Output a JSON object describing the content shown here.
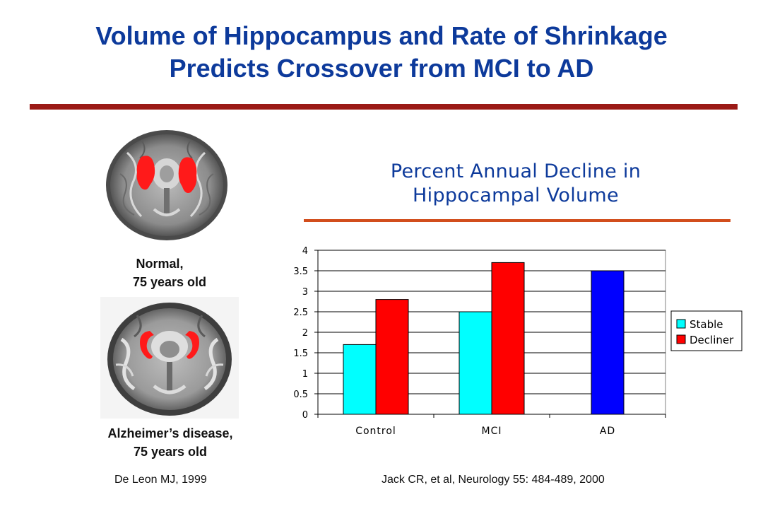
{
  "slide": {
    "title_line1": "Volume of Hippocampus and Rate of Shrinkage",
    "title_line2": "Predicts Crossover from MCI to AD"
  },
  "scans": {
    "normal_label_line1": "Normal,",
    "normal_label_line2": "75 years old",
    "ad_label_line1": "Alzheimer’s disease,",
    "ad_label_line2": "75 years old"
  },
  "citations": {
    "left": "De Leon MJ, 1999",
    "right": "Jack CR, et al, Neurology 55: 484-489, 2000"
  },
  "colors": {
    "title": "#0d3a9b",
    "title_rule": "#9b1a16",
    "chart_rule": "#d24d1c",
    "hippocampus_highlight": "#ff1a1a"
  },
  "chart_data": {
    "type": "bar",
    "title_line1": "Percent Annual Decline in",
    "title_line2": "Hippocampal Volume",
    "categories": [
      "Control",
      "MCI",
      "AD"
    ],
    "series": [
      {
        "name": "Stable",
        "color": "#00ffff",
        "values": [
          1.7,
          2.5,
          null
        ]
      },
      {
        "name": "Decliner",
        "color": "#ff0000",
        "values": [
          2.8,
          3.7,
          null
        ]
      },
      {
        "name": "",
        "color": "#0000ff",
        "values": [
          null,
          null,
          3.5
        ]
      }
    ],
    "ylim": [
      0,
      4
    ],
    "yticks": [
      "0",
      "0.5",
      "1",
      "1.5",
      "2",
      "2.5",
      "3",
      "3.5",
      "4"
    ],
    "grid": true,
    "legend": "right",
    "legend_entries": [
      "Stable",
      "Decliner"
    ]
  }
}
